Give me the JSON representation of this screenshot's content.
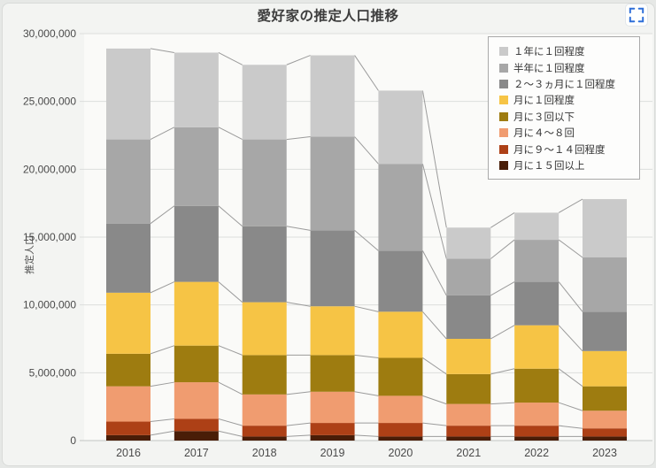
{
  "header": {
    "title": "愛好家の推定人口推移"
  },
  "toolbar": {
    "fullscreen_icon_color": "#2e6fd9"
  },
  "axes": {
    "y_title": "推定人口"
  },
  "chart_data": {
    "type": "bar",
    "stacked": true,
    "title": "愛好家の推定人口推移",
    "xlabel": "",
    "ylabel": "推定人口",
    "categories": [
      "2016",
      "2017",
      "2018",
      "2019",
      "2020",
      "2021",
      "2022",
      "2023"
    ],
    "ylim": [
      0,
      30000000
    ],
    "ytick_interval": 5000000,
    "yticks": [
      "0",
      "5,000,000",
      "10,000,000",
      "15,000,000",
      "20,000,000",
      "25,000,000",
      "30,000,000"
    ],
    "grid": true,
    "legend_position": "top-right",
    "connector_lines": true,
    "series": [
      {
        "name": "月に１５回以上",
        "color": "#491d07",
        "values": [
          400000,
          700000,
          300000,
          400000,
          300000,
          300000,
          300000,
          300000
        ]
      },
      {
        "name": "月に９～１４回程度",
        "color": "#ad4016",
        "values": [
          1000000,
          900000,
          800000,
          900000,
          1000000,
          800000,
          800000,
          600000
        ]
      },
      {
        "name": "月に４～８回",
        "color": "#f09c70",
        "values": [
          2600000,
          2700000,
          2300000,
          2300000,
          2000000,
          1600000,
          1700000,
          1300000
        ]
      },
      {
        "name": "月に３回以下",
        "color": "#9e7c10",
        "values": [
          2400000,
          2700000,
          2900000,
          2700000,
          2800000,
          2200000,
          2500000,
          1800000
        ]
      },
      {
        "name": "月に１回程度",
        "color": "#f6c445",
        "values": [
          4500000,
          4700000,
          3900000,
          3600000,
          3400000,
          2600000,
          3200000,
          2600000
        ]
      },
      {
        "name": "２～３ヵ月に１回程度",
        "color": "#898989",
        "values": [
          5100000,
          5600000,
          5600000,
          5600000,
          4500000,
          3200000,
          3200000,
          2900000
        ]
      },
      {
        "name": "半年に１回程度",
        "color": "#a7a7a7",
        "values": [
          6200000,
          5800000,
          6400000,
          6900000,
          6400000,
          2700000,
          3100000,
          4000000
        ]
      },
      {
        "name": "１年に１回程度",
        "color": "#cacaca",
        "values": [
          6700000,
          5500000,
          5500000,
          6000000,
          5400000,
          2300000,
          2000000,
          4300000
        ]
      }
    ],
    "totals": [
      28900000,
      28600000,
      27700000,
      28400000,
      25800000,
      15700000,
      16800000,
      17800000
    ]
  }
}
